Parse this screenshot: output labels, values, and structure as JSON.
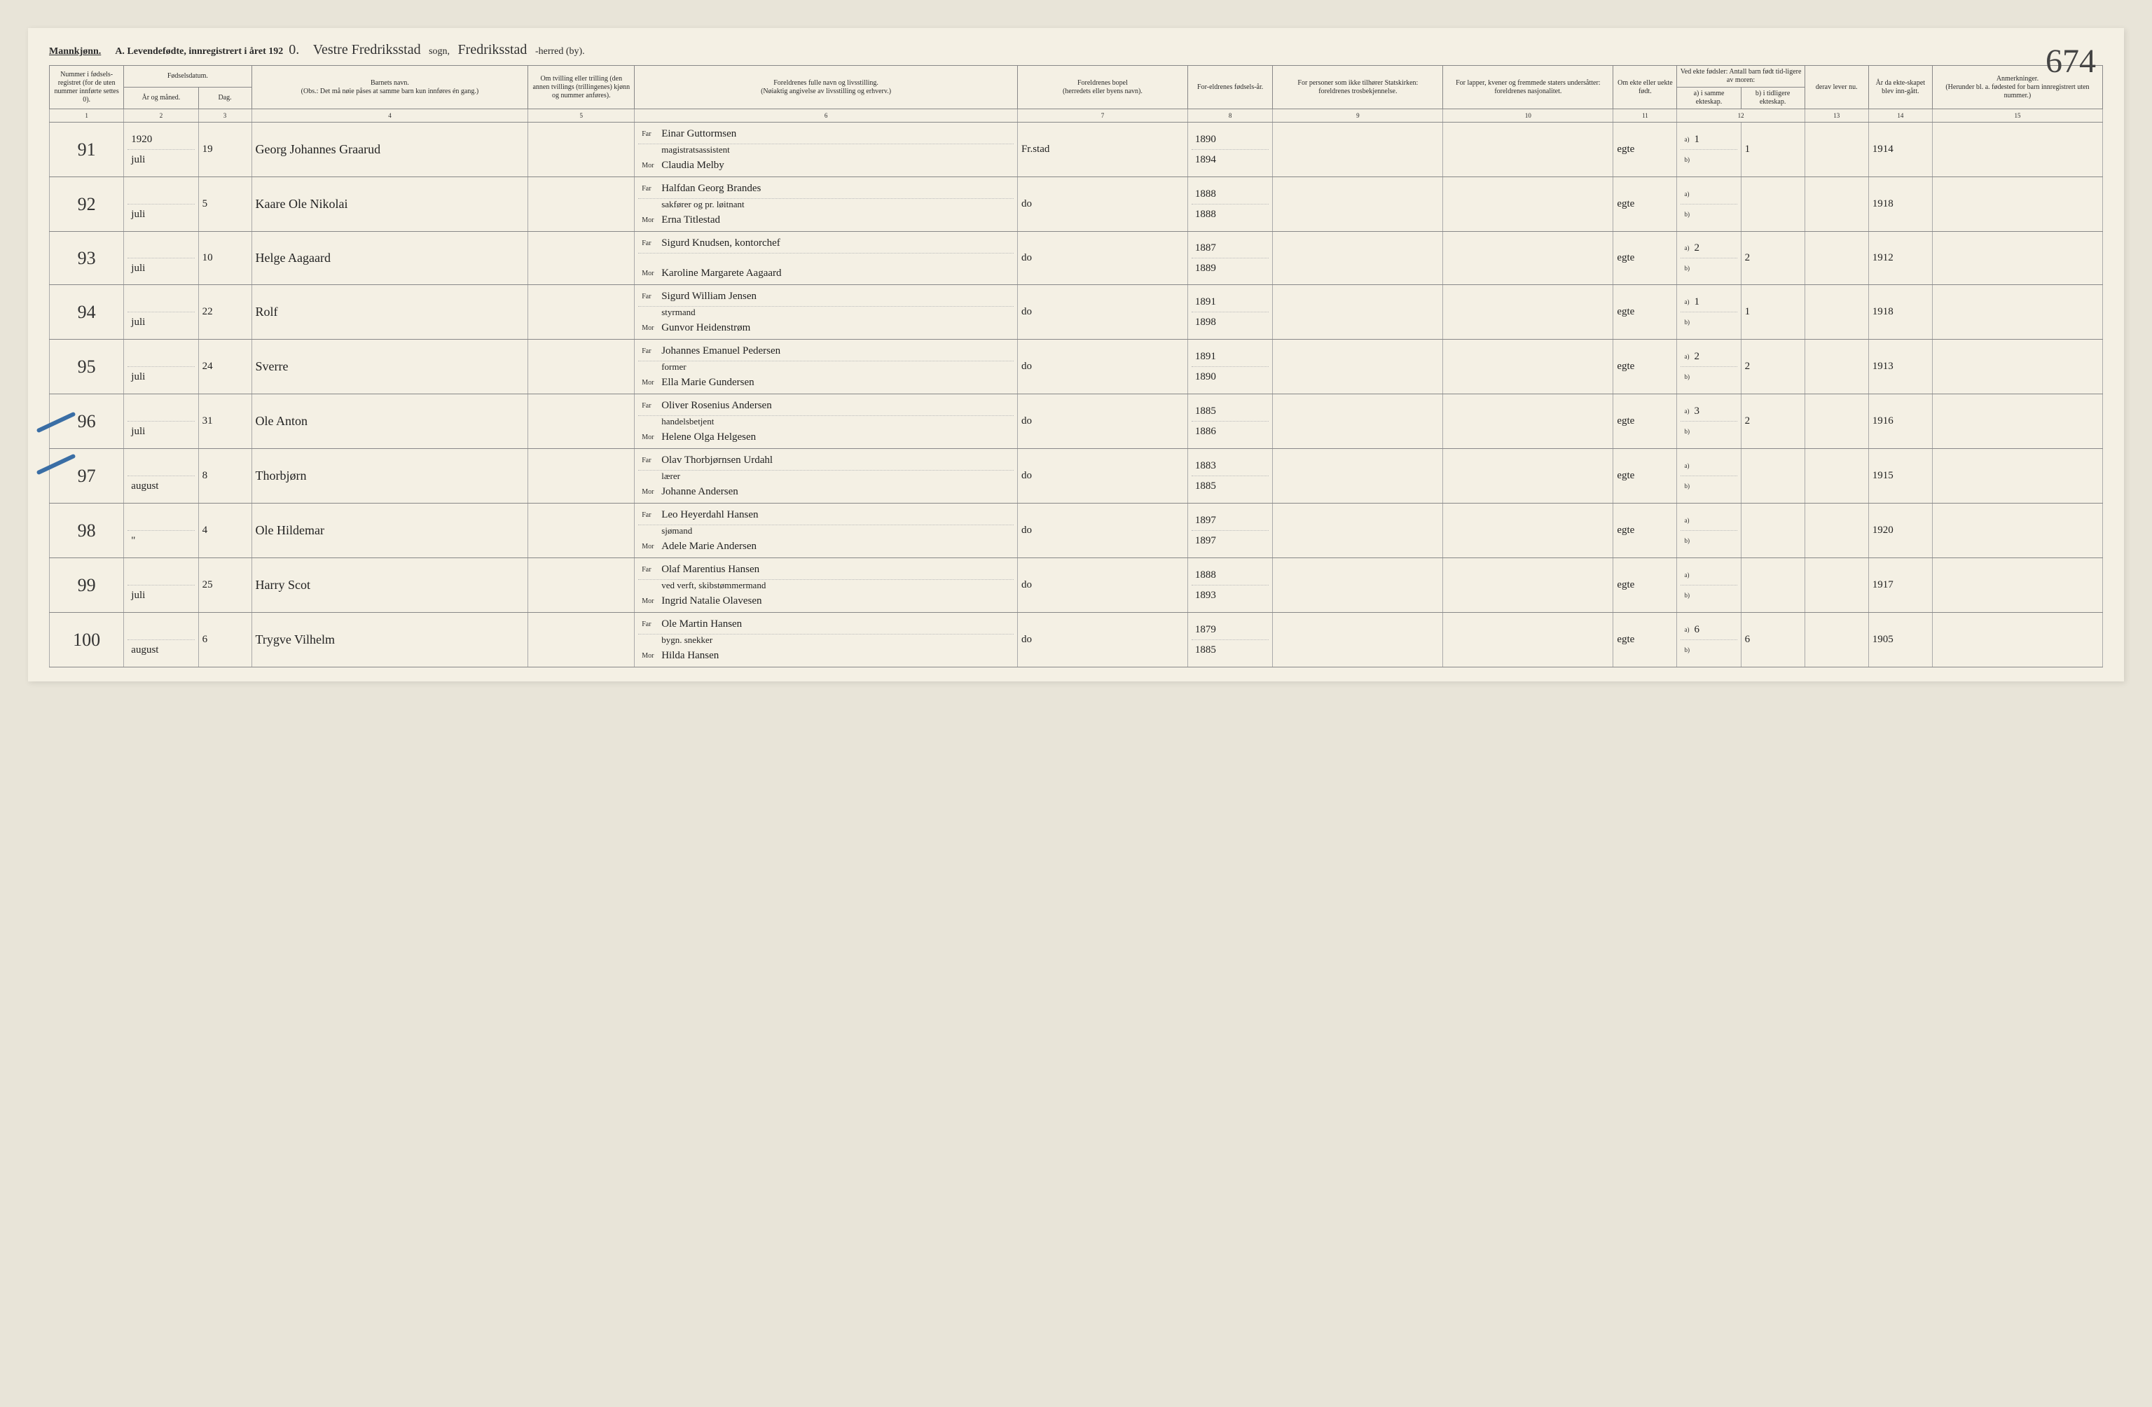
{
  "page_number": "674",
  "gender_label": "Mannkjønn.",
  "title_prefix": "A.",
  "title_main": "Levendefødte, innregistrert i året 192",
  "title_year_suffix": "0.",
  "sogn_value": "Vestre Fredriksstad",
  "sogn_label": "sogn,",
  "herred_value": "Fredriksstad",
  "herred_label": "-herred (by).",
  "headers": {
    "c1": "Nummer i fødsels-registret (for de uten nummer innførte settes 0).",
    "c2_top": "Fødselsdatum.",
    "c2_sub1": "År og måned.",
    "c2_sub2": "Dag.",
    "c4": "Barnets navn.",
    "c4_note": "(Obs.: Det må nøie påses at samme barn kun innføres én gang.)",
    "c5": "Om tvilling eller trilling (den annen tvillings (trillingenes) kjønn og nummer anføres).",
    "c6": "Foreldrenes fulle navn og livsstilling.",
    "c6_note": "(Nøiaktig angivelse av livsstilling og erhverv.)",
    "c7": "Foreldrenes bopel",
    "c7_note": "(herredets eller byens navn).",
    "c8": "For-eldrenes fødsels-år.",
    "c9": "For personer som ikke tilhører Statskirken:",
    "c9_note": "foreldrenes trosbekjennelse.",
    "c10": "For lapper, kvener og fremmede staters undersåtter:",
    "c10_note": "foreldrenes nasjonalitet.",
    "c11": "Om ekte eller uekte født.",
    "c12_top": "Ved ekte fødsler: Antall barn født tid-ligere av moren:",
    "c12_a": "a) i samme ekteskap.",
    "c12_b": "b) i tidligere ekteskap.",
    "c13_top": "derav lever nu.",
    "c13_note": "derav lever nu.",
    "c14": "År da ekte-skapet blev inn-gått.",
    "c15": "Anmerkninger.",
    "c15_note": "(Herunder bl. a. fødested for barn innregistrert uten nummer.)",
    "far": "Far",
    "mor": "Mor"
  },
  "colnums": [
    "1",
    "2",
    "3",
    "4",
    "5",
    "6",
    "7",
    "8",
    "9",
    "10",
    "11",
    "12",
    "",
    " ",
    "13",
    "14",
    "15"
  ],
  "rows": [
    {
      "num": "91",
      "year": "1920",
      "month": "juli",
      "day": "19",
      "child": "Georg Johannes Graarud",
      "far": "Einar Guttormsen",
      "occ": "magistratsassistent",
      "mor": "Claudia Melby",
      "bopel": "Fr.stad",
      "far_year": "1890",
      "mor_year": "1894",
      "ekte": "egte",
      "a": "1",
      "b": "1",
      "marriage": "1914"
    },
    {
      "num": "92",
      "year": "",
      "month": "juli",
      "day": "5",
      "child": "Kaare Ole Nikolai",
      "far": "Halfdan Georg Brandes",
      "occ": "sakfører og pr. løitnant",
      "mor": "Erna Titlestad",
      "bopel": "do",
      "far_year": "1888",
      "mor_year": "1888",
      "ekte": "egte",
      "a": "",
      "b": "",
      "marriage": "1918"
    },
    {
      "num": "93",
      "year": "",
      "month": "juli",
      "day": "10",
      "child": "Helge Aagaard",
      "far": "Sigurd Knudsen, kontorchef",
      "occ": "",
      "mor": "Karoline Margarete Aagaard",
      "bopel": "do",
      "far_year": "1887",
      "mor_year": "1889",
      "ekte": "egte",
      "a": "2",
      "b": "2",
      "marriage": "1912"
    },
    {
      "num": "94",
      "year": "",
      "month": "juli",
      "day": "22",
      "child": "Rolf",
      "far": "Sigurd William Jensen",
      "occ": "styrmand",
      "mor": "Gunvor Heidenstrøm",
      "bopel": "do",
      "far_year": "1891",
      "mor_year": "1898",
      "ekte": "egte",
      "a": "1",
      "b": "1",
      "marriage": "1918"
    },
    {
      "num": "95",
      "year": "",
      "month": "juli",
      "day": "24",
      "child": "Sverre",
      "far": "Johannes Emanuel Pedersen",
      "occ": "former",
      "mor": "Ella Marie Gundersen",
      "bopel": "do",
      "far_year": "1891",
      "mor_year": "1890",
      "ekte": "egte",
      "a": "2",
      "b": "2",
      "marriage": "1913"
    },
    {
      "num": "96",
      "year": "",
      "month": "juli",
      "day": "31",
      "child": "Ole Anton",
      "far": "Oliver Rosenius Andersen",
      "occ": "handelsbetjent",
      "mor": "Helene Olga Helgesen",
      "bopel": "do",
      "far_year": "1885",
      "mor_year": "1886",
      "ekte": "egte",
      "a": "3",
      "b": "2",
      "marriage": "1916"
    },
    {
      "num": "97",
      "year": "",
      "month": "august",
      "day": "8",
      "child": "Thorbjørn",
      "far": "Olav Thorbjørnsen Urdahl",
      "occ": "lærer",
      "mor": "Johanne Andersen",
      "bopel": "do",
      "far_year": "1883",
      "mor_year": "1885",
      "ekte": "egte",
      "a": "",
      "b": "",
      "marriage": "1915"
    },
    {
      "num": "98",
      "year": "",
      "month": "\"",
      "day": "4",
      "child": "Ole Hildemar",
      "far": "Leo Heyerdahl Hansen",
      "occ": "sjømand",
      "mor": "Adele Marie Andersen",
      "bopel": "do",
      "far_year": "1897",
      "mor_year": "1897",
      "ekte": "egte",
      "a": "",
      "b": "",
      "marriage": "1920"
    },
    {
      "num": "99",
      "year": "",
      "month": "juli",
      "day": "25",
      "child": "Harry Scot",
      "far": "Olaf Marentius Hansen",
      "occ": "ved verft, skibstømmermand",
      "mor": "Ingrid Natalie Olavesen",
      "bopel": "do",
      "far_year": "1888",
      "mor_year": "1893",
      "ekte": "egte",
      "a": "",
      "b": "",
      "marriage": "1917"
    },
    {
      "num": "100",
      "year": "",
      "month": "august",
      "day": "6",
      "child": "Trygve Vilhelm",
      "far": "Ole Martin Hansen",
      "occ": "bygn. snekker",
      "mor": "Hilda Hansen",
      "bopel": "do",
      "far_year": "1879",
      "mor_year": "1885",
      "ekte": "egte",
      "a": "6",
      "b": "6",
      "marriage": "1905"
    }
  ]
}
